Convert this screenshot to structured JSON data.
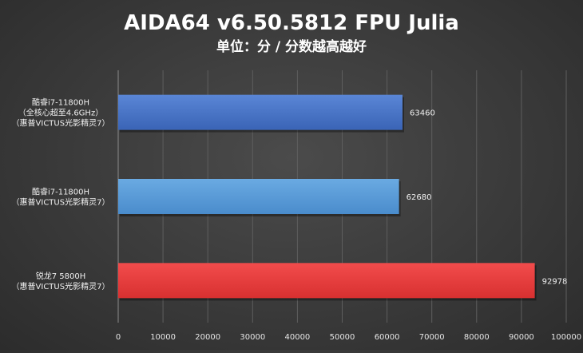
{
  "chart_data": {
    "type": "bar",
    "orientation": "horizontal",
    "title": "AIDA64 v6.50.5812 FPU Julia",
    "subtitle": "单位：分 / 分数越高越好",
    "categories": [
      [
        "酷睿i7-11800H",
        "（全核心超至4.6GHz）",
        "（惠普VICTUS光影精灵7）"
      ],
      [
        "酷睿i7-11800H",
        "（惠普VICTUS光影精灵7）"
      ],
      [
        "锐龙7 5800H",
        "（惠普VICTUS光影精灵7）"
      ]
    ],
    "values": [
      63460,
      62680,
      92978
    ],
    "bar_colors": [
      "#4472c4",
      "#5b9bd5",
      "#e83a3a"
    ],
    "xlim": [
      0,
      100000
    ],
    "xticks": [
      0,
      10000,
      20000,
      30000,
      40000,
      50000,
      60000,
      70000,
      80000,
      90000,
      100000
    ],
    "grid": true,
    "legend": "none"
  }
}
